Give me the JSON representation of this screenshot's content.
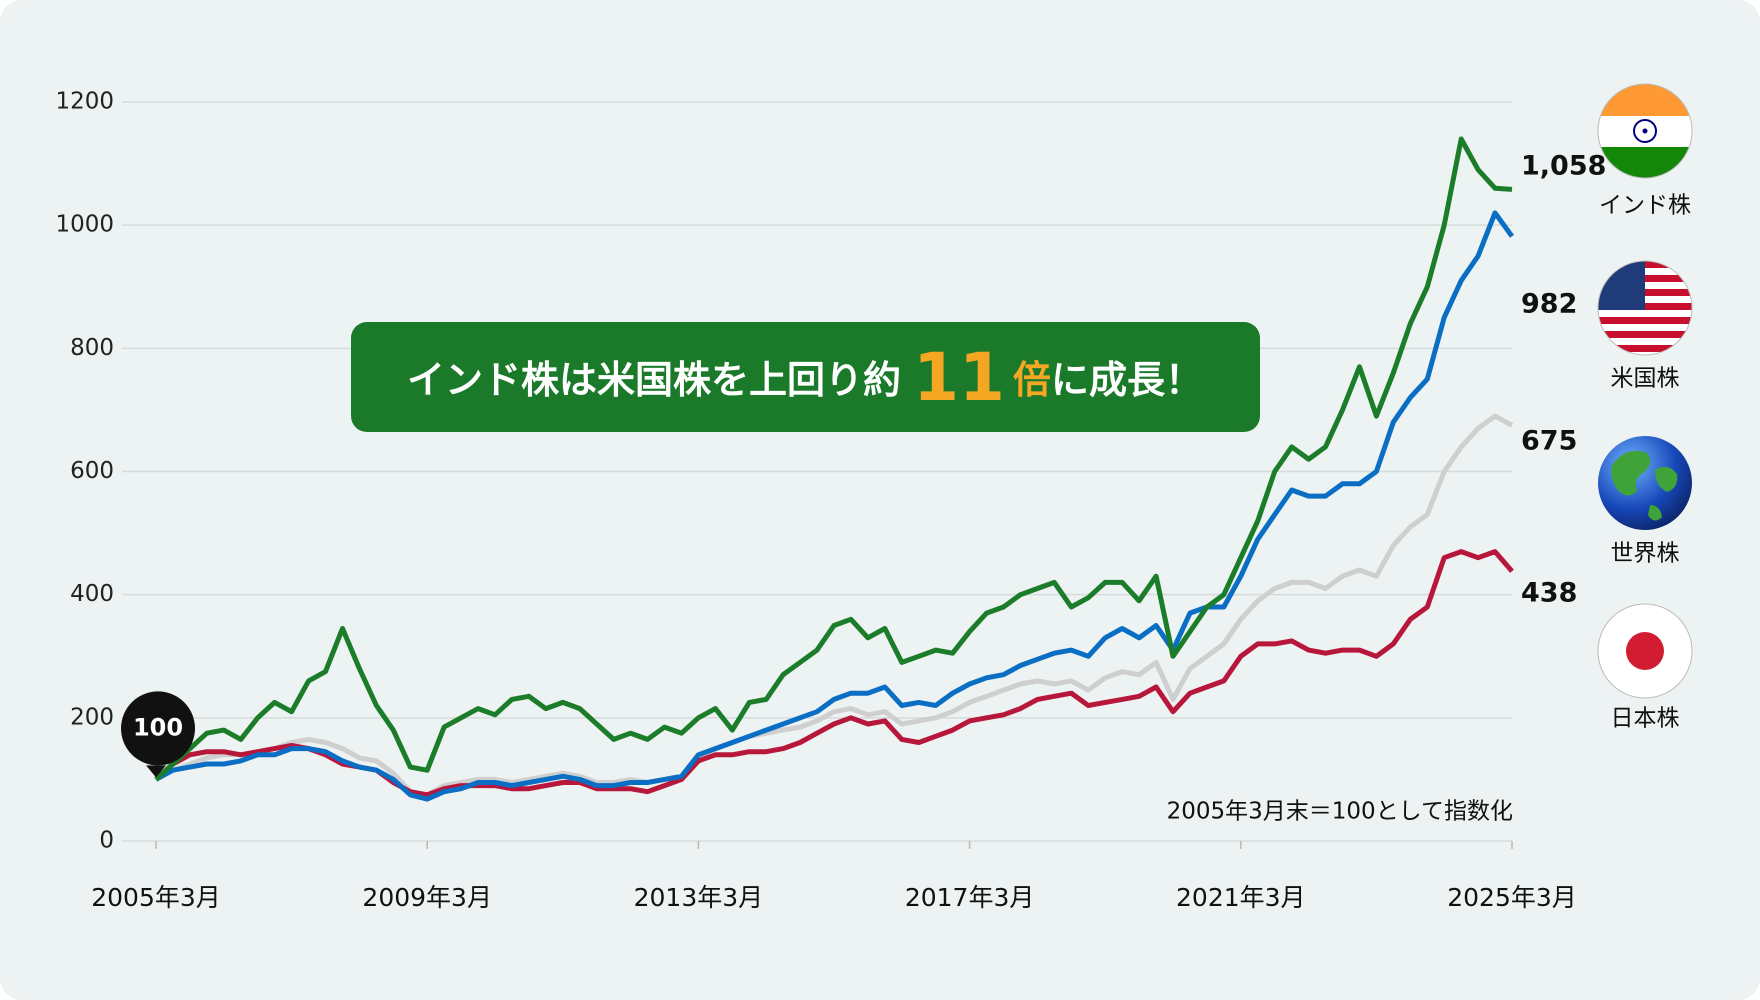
{
  "chart_data": {
    "type": "line",
    "banner": [
      "インド株は米国株を上回り約",
      "11",
      "倍",
      "に成長！"
    ],
    "note": "2005年3月末＝100として指数化",
    "categories": [
      "2005年3月",
      null,
      null,
      null,
      null,
      null,
      null,
      null,
      null,
      null,
      null,
      null,
      null,
      null,
      null,
      null,
      "2009年3月",
      null,
      null,
      null,
      null,
      null,
      null,
      null,
      null,
      null,
      null,
      null,
      null,
      null,
      null,
      null,
      "2013年3月",
      null,
      null,
      null,
      null,
      null,
      null,
      null,
      null,
      null,
      null,
      null,
      null,
      null,
      null,
      null,
      "2017年3月",
      null,
      null,
      null,
      null,
      null,
      null,
      null,
      null,
      null,
      null,
      null,
      null,
      null,
      null,
      null,
      "2021年3月",
      null,
      null,
      null,
      null,
      null,
      null,
      null,
      null,
      null,
      null,
      null,
      null,
      null,
      null,
      null,
      "2025年3月"
    ],
    "series": [
      {
        "name": "インド株",
        "color": "#1b7d2a",
        "values": [
          100,
          125,
          150,
          175,
          180,
          165,
          200,
          225,
          210,
          260,
          275,
          345,
          280,
          220,
          180,
          120,
          115,
          185,
          200,
          215,
          205,
          230,
          235,
          215,
          225,
          215,
          190,
          165,
          175,
          165,
          185,
          175,
          200,
          215,
          180,
          225,
          230,
          270,
          290,
          310,
          350,
          360,
          330,
          345,
          290,
          300,
          310,
          305,
          340,
          370,
          380,
          400,
          410,
          420,
          380,
          395,
          420,
          420,
          390,
          430,
          300,
          340,
          380,
          400,
          460,
          520,
          600,
          640,
          620,
          640,
          700,
          770,
          690,
          760,
          840,
          900,
          1000,
          1140,
          1090,
          1060,
          1058
        ],
        "value_labels": [
          null,
          null,
          null,
          null,
          null,
          null,
          null,
          null,
          null,
          null,
          null,
          null,
          null,
          null,
          null,
          null,
          null,
          null,
          null,
          null,
          null,
          null,
          null,
          null,
          null,
          null,
          null,
          null,
          null,
          null,
          null,
          null,
          null,
          null,
          null,
          null,
          null,
          null,
          null,
          null,
          null,
          null,
          null,
          null,
          null,
          null,
          null,
          null,
          null,
          null,
          null,
          null,
          null,
          null,
          null,
          null,
          null,
          null,
          null,
          null,
          null,
          null,
          null,
          null,
          null,
          null,
          null,
          null,
          null,
          null,
          null,
          null,
          null,
          null,
          null,
          null,
          null,
          null,
          null,
          null,
          "1,058"
        ]
      },
      {
        "name": "米国株",
        "color": "#0a6ec4",
        "values": [
          100,
          115,
          120,
          125,
          125,
          130,
          140,
          140,
          150,
          150,
          145,
          130,
          120,
          115,
          100,
          75,
          68,
          80,
          85,
          95,
          95,
          90,
          95,
          100,
          105,
          100,
          90,
          90,
          95,
          95,
          100,
          105,
          140,
          150,
          160,
          170,
          180,
          190,
          200,
          210,
          230,
          240,
          240,
          250,
          220,
          225,
          220,
          240,
          255,
          265,
          270,
          285,
          295,
          305,
          310,
          300,
          330,
          345,
          330,
          350,
          310,
          370,
          380,
          380,
          430,
          490,
          530,
          570,
          560,
          560,
          580,
          580,
          600,
          680,
          720,
          750,
          850,
          910,
          950,
          1020,
          982
        ]
      },
      {
        "name": "世界株",
        "color": "#cfcfcf",
        "values": [
          100,
          115,
          125,
          135,
          140,
          140,
          145,
          150,
          160,
          165,
          160,
          150,
          135,
          130,
          110,
          80,
          75,
          90,
          95,
          100,
          100,
          95,
          100,
          105,
          110,
          105,
          95,
          95,
          100,
          95,
          100,
          105,
          135,
          150,
          160,
          170,
          175,
          180,
          185,
          195,
          210,
          215,
          205,
          210,
          190,
          195,
          200,
          210,
          225,
          235,
          245,
          255,
          260,
          255,
          260,
          245,
          265,
          275,
          270,
          290,
          230,
          280,
          300,
          320,
          360,
          390,
          410,
          420,
          420,
          410,
          430,
          440,
          430,
          480,
          510,
          530,
          600,
          640,
          670,
          690,
          675
        ]
      },
      {
        "name": "日本株",
        "color": "#b8173c",
        "values": [
          100,
          125,
          140,
          145,
          145,
          140,
          145,
          150,
          155,
          150,
          140,
          125,
          120,
          115,
          95,
          80,
          75,
          85,
          90,
          90,
          90,
          85,
          85,
          90,
          95,
          95,
          85,
          85,
          85,
          80,
          90,
          100,
          130,
          140,
          140,
          145,
          145,
          150,
          160,
          175,
          190,
          200,
          190,
          195,
          165,
          160,
          170,
          180,
          195,
          200,
          205,
          215,
          230,
          235,
          240,
          220,
          225,
          230,
          235,
          250,
          210,
          240,
          250,
          260,
          300,
          320,
          320,
          325,
          310,
          305,
          310,
          310,
          300,
          320,
          360,
          380,
          460,
          470,
          460,
          470,
          438
        ]
      }
    ],
    "ylim": [
      0,
      1200
    ],
    "yticks": [
      0,
      200,
      400,
      600,
      800,
      1000,
      1200
    ],
    "grid": true
  }
}
